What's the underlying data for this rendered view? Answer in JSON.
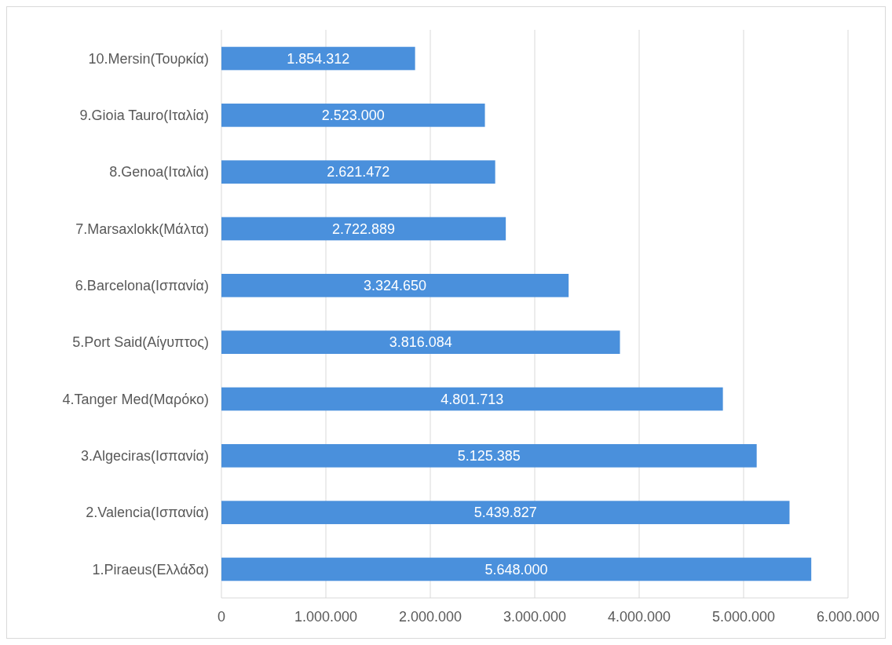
{
  "chart_data": {
    "type": "bar",
    "orientation": "horizontal",
    "categories": [
      "10.Mersin(Τουρκία)",
      "9.Gioia Tauro(Ιταλία)",
      "8.Genoa(Ιταλία)",
      "7.Marsaxlokk(Μάλτα)",
      "6.Barcelona(Ισπανία)",
      "5.Port Said(Αίγυπτος)",
      "4.Tanger Med(Μαρόκο)",
      "3.Algeciras(Ισπανία)",
      "2.Valencia(Ισπανία)",
      "1.Piraeus(Ελλάδα)"
    ],
    "values": [
      1854312,
      2523000,
      2621472,
      2722889,
      3324650,
      3816084,
      4801713,
      5125385,
      5439827,
      5648000
    ],
    "value_labels": [
      "1.854.312",
      "2.523.000",
      "2.621.472",
      "2.722.889",
      "3.324.650",
      "3.816.084",
      "4.801.713",
      "5.125.385",
      "5.439.827",
      "5.648.000"
    ],
    "color": "#4a90dc",
    "xlim": [
      0,
      6000000
    ],
    "xticks": [
      0,
      {
        "value": 1000000,
        "label": "1.000.000"
      },
      {
        "value": 2000000,
        "label": "2.000.000"
      },
      {
        "value": 3000000,
        "label": "3.000.000"
      },
      {
        "value": 4000000,
        "label": "4.000.000"
      },
      {
        "value": 5000000,
        "label": "5.000.000"
      },
      {
        "value": 6000000,
        "label": "6.000.000"
      }
    ],
    "grid": "x"
  }
}
